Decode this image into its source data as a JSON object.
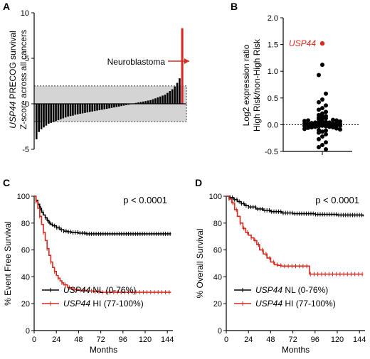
{
  "colors": {
    "black": "#000000",
    "red": "#d62a1e",
    "band": "#d4d4d4",
    "white": "#ffffff"
  },
  "chart_data": [
    {
      "panel": "A",
      "type": "bar",
      "ylabel_gene": "USP44",
      "ylabel_line1_rest": " PRECOG survival",
      "ylabel_line2": "Z-score across all cancers",
      "ylim": [
        -5,
        10
      ],
      "yticks": [
        -5,
        0,
        5,
        10
      ],
      "band": [
        -1.96,
        1.96
      ],
      "annotation": "Neuroblastoma",
      "highlight_value": 8.3,
      "values": [
        -3.9,
        -3.1,
        -2.8,
        -2.6,
        -2.4,
        -2.2,
        -2.1,
        -2.0,
        -1.9,
        -1.8,
        -1.7,
        -1.6,
        -1.5,
        -1.4,
        -1.35,
        -1.3,
        -1.2,
        -1.15,
        -1.1,
        -1.05,
        -1.0,
        -0.95,
        -0.9,
        -0.85,
        -0.8,
        -0.75,
        -0.7,
        -0.65,
        -0.6,
        -0.55,
        -0.5,
        -0.45,
        -0.4,
        -0.35,
        -0.3,
        -0.25,
        -0.2,
        -0.15,
        -0.1,
        -0.05,
        0.05,
        0.1,
        0.15,
        0.2,
        0.25,
        0.3,
        0.35,
        0.4,
        0.5,
        0.6,
        0.7,
        0.8,
        0.9,
        1.0,
        1.2,
        1.4,
        1.6,
        1.9,
        2.3,
        2.8,
        8.3
      ]
    },
    {
      "panel": "B",
      "type": "scatter",
      "ylabel_line1": "Log2 expression ratio",
      "ylabel_line2": "High Risk/non-High Risk",
      "ylim": [
        -0.5,
        2.0
      ],
      "yticks": [
        "-0.5",
        "0.0",
        "0.5",
        "1.0",
        "1.5",
        "2.0"
      ],
      "reference_line": 0,
      "highlight_label": "USP44",
      "highlight_value": 1.52,
      "values": [
        1.12,
        0.93,
        0.58,
        0.47,
        0.42,
        0.36,
        0.31,
        0.28,
        0.24,
        0.21,
        0.18,
        0.16,
        0.15,
        0.13,
        0.12,
        0.11,
        0.1,
        0.09,
        0.08,
        0.08,
        0.07,
        0.06,
        0.06,
        0.05,
        0.05,
        0.04,
        0.04,
        0.03,
        0.03,
        0.02,
        0.02,
        0.02,
        0.01,
        0.01,
        0.01,
        0.0,
        0.0,
        0.0,
        0.0,
        -0.01,
        -0.01,
        -0.01,
        -0.02,
        -0.02,
        -0.02,
        -0.03,
        -0.03,
        -0.04,
        -0.04,
        -0.05,
        -0.05,
        -0.06,
        -0.07,
        -0.08,
        -0.09,
        -0.1,
        -0.11,
        -0.13,
        -0.15,
        -0.18,
        -0.22,
        -0.27,
        -0.33,
        -0.38,
        -0.42,
        -0.46
      ]
    },
    {
      "panel": "C",
      "type": "line",
      "ylabel": "% Event Free Survival",
      "xlabel": "Months",
      "xlim": [
        0,
        150
      ],
      "ylim": [
        0,
        100
      ],
      "xticks": [
        0,
        24,
        48,
        72,
        96,
        120,
        144
      ],
      "yticks": [
        0,
        20,
        40,
        60,
        80,
        100
      ],
      "pvalue": "p < 0.0001",
      "series": [
        {
          "gene": "USP44",
          "name_rest": " NL (0-76%)",
          "color": "#000000",
          "x": [
            0,
            2,
            4,
            6,
            8,
            10,
            12,
            14,
            16,
            18,
            20,
            24,
            28,
            32,
            36,
            40,
            48,
            56,
            72,
            96,
            120,
            148
          ],
          "y": [
            100,
            97,
            94,
            91,
            88,
            86,
            84,
            82,
            80,
            79,
            78,
            76.5,
            75,
            74,
            73.5,
            73,
            72.5,
            72,
            72,
            72,
            72,
            72
          ]
        },
        {
          "gene": "USP44",
          "name_rest": " HI (77-100%)",
          "color": "#d62a1e",
          "x": [
            0,
            2,
            4,
            6,
            8,
            10,
            12,
            14,
            16,
            18,
            20,
            22,
            24,
            26,
            28,
            30,
            32,
            36,
            40,
            44,
            48,
            56,
            64,
            72,
            96,
            120,
            148
          ],
          "y": [
            100,
            96,
            91,
            85,
            79,
            73,
            67,
            61,
            56,
            51,
            47,
            44,
            41,
            39,
            37,
            35.5,
            34,
            32,
            31,
            30.5,
            30,
            29.5,
            29,
            28.5,
            28.5,
            28.5,
            28.5
          ]
        }
      ]
    },
    {
      "panel": "D",
      "type": "line",
      "ylabel": "% Overall Survival",
      "xlabel": "Months",
      "xlim": [
        0,
        150
      ],
      "ylim": [
        0,
        100
      ],
      "xticks": [
        0,
        24,
        48,
        72,
        96,
        120,
        144
      ],
      "yticks": [
        0,
        20,
        40,
        60,
        80,
        100
      ],
      "pvalue": "p < 0.0001",
      "series": [
        {
          "gene": "USP44",
          "name_rest": " NL (0-76%)",
          "color": "#000000",
          "x": [
            0,
            4,
            8,
            12,
            16,
            20,
            24,
            32,
            40,
            48,
            60,
            72,
            96,
            120,
            148
          ],
          "y": [
            100,
            99,
            97.5,
            96,
            94.5,
            93,
            92,
            90.5,
            89.5,
            88.5,
            87.5,
            87,
            86.5,
            86,
            85
          ]
        },
        {
          "gene": "USP44",
          "name_rest": " HI (77-100%)",
          "color": "#d62a1e",
          "x": [
            0,
            3,
            6,
            9,
            12,
            15,
            18,
            21,
            24,
            27,
            30,
            33,
            36,
            40,
            44,
            48,
            52,
            56,
            60,
            72,
            84,
            90,
            96,
            120,
            148
          ],
          "y": [
            100,
            98,
            95,
            90,
            85,
            80,
            76,
            73,
            71,
            69,
            67,
            64,
            60,
            57,
            54,
            51,
            49,
            48.5,
            48,
            48,
            48,
            42,
            42,
            42,
            42
          ]
        }
      ]
    }
  ]
}
